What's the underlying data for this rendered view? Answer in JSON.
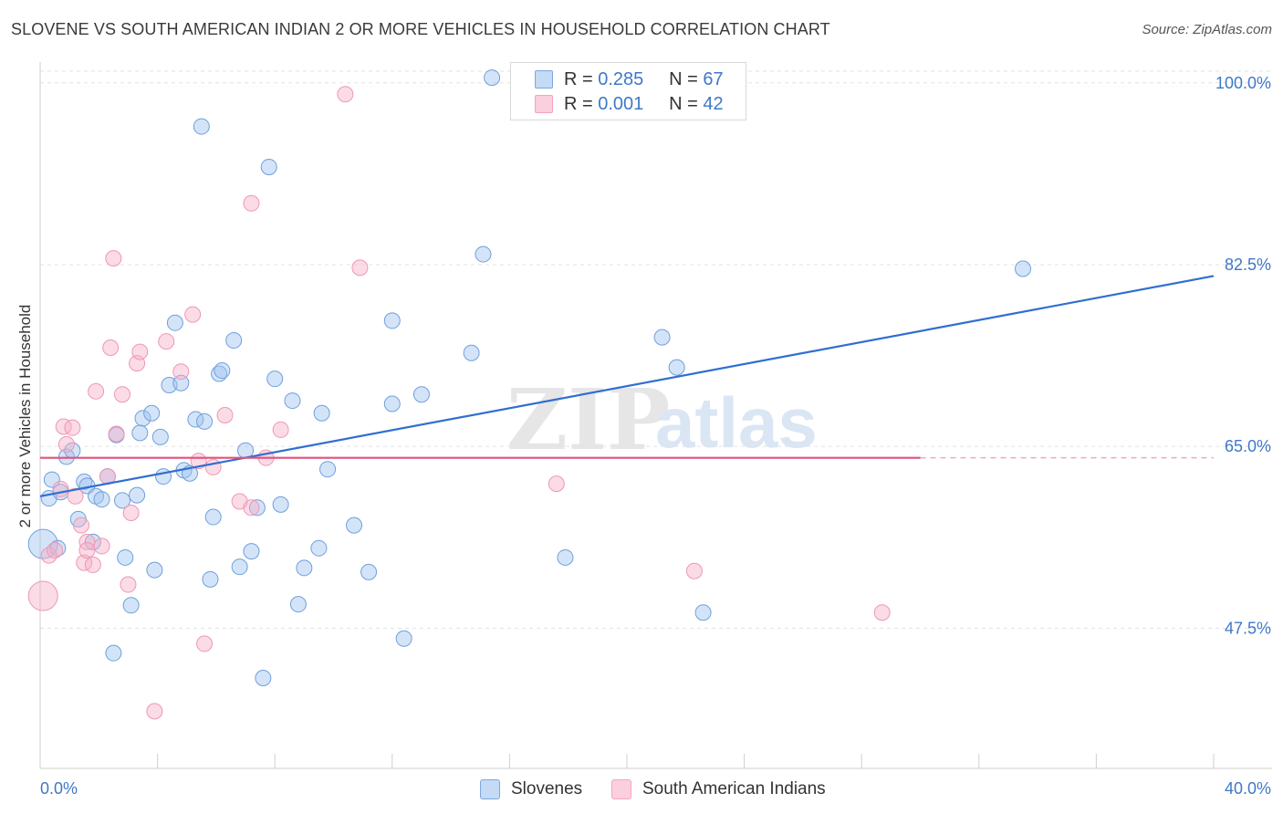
{
  "title": "SLOVENE VS SOUTH AMERICAN INDIAN 2 OR MORE VEHICLES IN HOUSEHOLD CORRELATION CHART",
  "source": "Source: ZipAtlas.com",
  "watermark": {
    "zip": "ZIP",
    "atlas": "atlas"
  },
  "legend": {
    "r_label": "R =",
    "n_label": "N =",
    "rows": [
      {
        "r": "0.285",
        "n": "67"
      },
      {
        "r": "0.001",
        "n": "42"
      }
    ]
  },
  "chart_data": {
    "type": "scatter",
    "title": "SLOVENE VS SOUTH AMERICAN INDIAN 2 OR MORE VEHICLES IN HOUSEHOLD CORRELATION CHART",
    "xlabel": "",
    "ylabel": "2 or more Vehicles in Household",
    "xlim": [
      0,
      40
    ],
    "ylim": [
      34,
      102
    ],
    "x_tick_labels": [
      "0.0%",
      "40.0%"
    ],
    "y_ticks": [
      47.5,
      65.0,
      82.5,
      100.0
    ],
    "y_tick_labels": [
      "47.5%",
      "65.0%",
      "82.5%",
      "100.0%"
    ],
    "grid": true,
    "legend_position": "top-center",
    "colors": {
      "slovenes": "#7ba7e0",
      "sai": "#f4a4be",
      "slovenes_line": "#2f6fd0",
      "sai_line": "#e0527e"
    },
    "series": [
      {
        "name": "Slovenes",
        "r": 0.285,
        "n": 67,
        "trend": {
          "x0": 0,
          "y0": 60.2,
          "x1": 40,
          "y1": 81.4
        },
        "points": [
          [
            0.1,
            55.6
          ],
          [
            0.3,
            60.0
          ],
          [
            0.4,
            61.8
          ],
          [
            0.6,
            55.2
          ],
          [
            0.7,
            60.6
          ],
          [
            0.9,
            64.0
          ],
          [
            1.1,
            64.6
          ],
          [
            1.3,
            58.0
          ],
          [
            1.5,
            61.6
          ],
          [
            1.6,
            61.2
          ],
          [
            1.8,
            55.8
          ],
          [
            1.9,
            60.2
          ],
          [
            2.1,
            59.9
          ],
          [
            2.3,
            62.1
          ],
          [
            2.5,
            45.1
          ],
          [
            2.6,
            66.1
          ],
          [
            2.8,
            59.8
          ],
          [
            2.9,
            54.3
          ],
          [
            3.1,
            49.7
          ],
          [
            3.3,
            60.3
          ],
          [
            3.4,
            66.3
          ],
          [
            3.5,
            67.7
          ],
          [
            3.8,
            68.2
          ],
          [
            3.9,
            53.1
          ],
          [
            4.1,
            65.9
          ],
          [
            4.2,
            62.1
          ],
          [
            4.4,
            70.9
          ],
          [
            4.6,
            76.9
          ],
          [
            4.8,
            71.1
          ],
          [
            4.9,
            62.7
          ],
          [
            5.1,
            62.4
          ],
          [
            5.3,
            67.6
          ],
          [
            5.5,
            95.8
          ],
          [
            5.6,
            67.4
          ],
          [
            5.8,
            52.2
          ],
          [
            5.9,
            58.2
          ],
          [
            6.1,
            72.0
          ],
          [
            6.2,
            72.3
          ],
          [
            6.6,
            75.2
          ],
          [
            6.8,
            53.4
          ],
          [
            7.0,
            64.6
          ],
          [
            7.2,
            54.9
          ],
          [
            7.4,
            59.1
          ],
          [
            7.6,
            42.7
          ],
          [
            7.8,
            91.9
          ],
          [
            8.0,
            71.5
          ],
          [
            8.2,
            59.4
          ],
          [
            8.6,
            69.4
          ],
          [
            8.8,
            49.8
          ],
          [
            9.0,
            53.3
          ],
          [
            9.6,
            68.2
          ],
          [
            9.8,
            62.8
          ],
          [
            9.5,
            55.2
          ],
          [
            10.7,
            57.4
          ],
          [
            11.2,
            52.9
          ],
          [
            12.0,
            77.1
          ],
          [
            12.0,
            69.1
          ],
          [
            12.4,
            46.5
          ],
          [
            13.0,
            70.0
          ],
          [
            14.7,
            74.0
          ],
          [
            15.1,
            83.5
          ],
          [
            15.4,
            100.5
          ],
          [
            17.9,
            54.3
          ],
          [
            21.2,
            75.5
          ],
          [
            21.7,
            72.6
          ],
          [
            22.6,
            49.0
          ],
          [
            33.5,
            82.1
          ]
        ]
      },
      {
        "name": "South American Indians",
        "r": 0.001,
        "n": 42,
        "trend": {
          "x0": 0,
          "y0": 63.9,
          "x1": 30,
          "y1": 63.9
        },
        "points": [
          [
            0.1,
            50.6
          ],
          [
            0.3,
            54.5
          ],
          [
            0.5,
            55.0
          ],
          [
            0.7,
            60.9
          ],
          [
            0.8,
            66.9
          ],
          [
            0.9,
            65.2
          ],
          [
            1.1,
            66.8
          ],
          [
            1.2,
            60.2
          ],
          [
            1.4,
            57.4
          ],
          [
            1.5,
            53.8
          ],
          [
            1.6,
            55.8
          ],
          [
            1.6,
            55.0
          ],
          [
            1.8,
            53.6
          ],
          [
            1.9,
            70.3
          ],
          [
            2.1,
            55.4
          ],
          [
            2.3,
            62.1
          ],
          [
            2.4,
            74.5
          ],
          [
            2.5,
            83.1
          ],
          [
            2.6,
            66.2
          ],
          [
            2.8,
            70.0
          ],
          [
            3.0,
            51.7
          ],
          [
            3.1,
            58.6
          ],
          [
            3.3,
            73.0
          ],
          [
            3.4,
            74.1
          ],
          [
            3.9,
            39.5
          ],
          [
            4.3,
            75.1
          ],
          [
            4.8,
            72.2
          ],
          [
            5.2,
            77.7
          ],
          [
            5.4,
            63.6
          ],
          [
            5.6,
            46.0
          ],
          [
            5.9,
            63.0
          ],
          [
            6.3,
            68.0
          ],
          [
            6.8,
            59.7
          ],
          [
            7.2,
            59.1
          ],
          [
            7.2,
            88.4
          ],
          [
            7.7,
            63.9
          ],
          [
            8.2,
            66.6
          ],
          [
            10.4,
            98.9
          ],
          [
            10.9,
            82.2
          ],
          [
            17.6,
            61.4
          ],
          [
            22.3,
            53.0
          ],
          [
            28.7,
            49.0
          ]
        ]
      }
    ]
  },
  "bottom_legend": [
    "Slovenes",
    "South American Indians"
  ]
}
